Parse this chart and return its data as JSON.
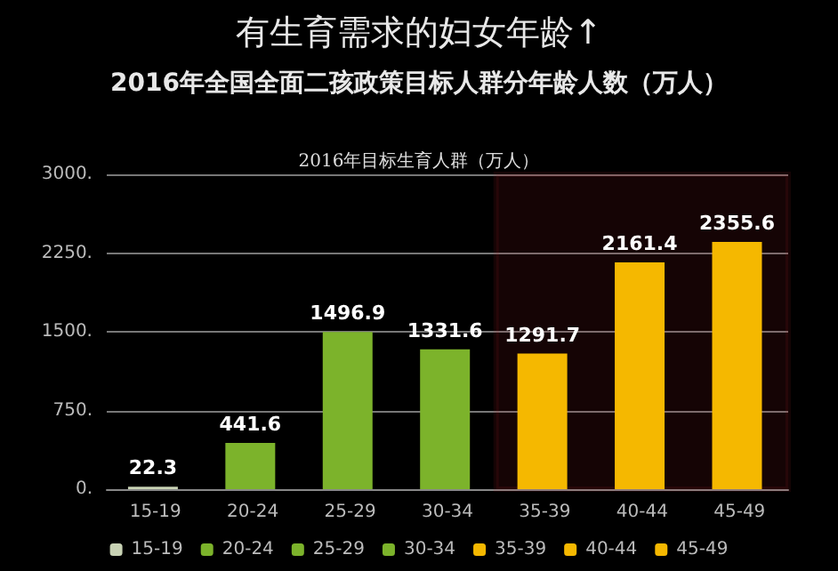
{
  "chart_data": {
    "type": "bar",
    "title": "有生育需求的妇女年龄↑",
    "subtitle": "2016年全国全面二孩政策目标人群分年龄人数（万人）",
    "annotations": [
      "2016年目标生育人群（万人）"
    ],
    "categories": [
      "15-19",
      "20-24",
      "25-29",
      "30-34",
      "35-39",
      "40-44",
      "45-49"
    ],
    "stacked": true,
    "series": [
      {
        "name": "15-19",
        "color": "#c8d2b4",
        "values": [
          22.3,
          null,
          null,
          null,
          null,
          null,
          null
        ]
      },
      {
        "name": "20-24",
        "color": "#7cb32b",
        "values": [
          null,
          441.6,
          null,
          null,
          null,
          null,
          null
        ]
      },
      {
        "name": "25-29",
        "color": "#7cb32b",
        "values": [
          null,
          null,
          1496.9,
          null,
          null,
          null,
          null
        ]
      },
      {
        "name": "30-34",
        "color": "#7cb32b",
        "values": [
          null,
          null,
          null,
          1331.6,
          null,
          null,
          null
        ]
      },
      {
        "name": "35-39",
        "color": "#f5b800",
        "values": [
          null,
          null,
          null,
          null,
          1291.7,
          null,
          null
        ]
      },
      {
        "name": "40-44",
        "color": "#f5b800",
        "values": [
          null,
          null,
          null,
          null,
          null,
          2161.4,
          null
        ]
      },
      {
        "name": "45-49",
        "color": "#f5b800",
        "values": [
          null,
          null,
          null,
          null,
          null,
          null,
          2355.6
        ]
      }
    ],
    "ylim": [
      0,
      3000
    ],
    "yticks": [
      {
        "value": 0,
        "label": "0."
      },
      {
        "value": 750,
        "label": "750."
      },
      {
        "value": 1500,
        "label": "1500."
      },
      {
        "value": 2250,
        "label": "2250."
      },
      {
        "value": 3000,
        "label": "3000."
      }
    ],
    "grid": "y",
    "legend": "bottom",
    "data_labels": true,
    "bands": [
      {
        "axis": "x",
        "from": "35-39",
        "to": "45-49",
        "color": "#b0202a"
      }
    ]
  }
}
